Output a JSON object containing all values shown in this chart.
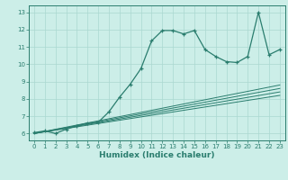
{
  "main_curve_x": [
    0,
    1,
    2,
    3,
    4,
    5,
    6,
    7,
    8,
    9,
    10,
    11,
    12,
    13,
    14,
    15,
    16,
    17,
    18,
    19,
    20,
    21,
    22,
    23
  ],
  "main_curve_y": [
    6.05,
    6.15,
    6.0,
    6.25,
    6.45,
    6.6,
    6.65,
    7.25,
    8.1,
    8.85,
    9.75,
    11.35,
    11.95,
    11.95,
    11.75,
    11.95,
    10.85,
    10.45,
    10.15,
    10.1,
    10.45,
    13.0,
    10.55,
    10.85
  ],
  "ref_lines": [
    {
      "x": [
        0,
        23
      ],
      "y": [
        6.0,
        8.2
      ]
    },
    {
      "x": [
        0,
        23
      ],
      "y": [
        6.0,
        8.4
      ]
    },
    {
      "x": [
        0,
        23
      ],
      "y": [
        6.0,
        8.6
      ]
    },
    {
      "x": [
        0,
        23
      ],
      "y": [
        6.0,
        8.8
      ]
    }
  ],
  "color": "#2a7d6e",
  "bg_color": "#cceee8",
  "grid_color": "#aad8d0",
  "xlim": [
    -0.5,
    23.5
  ],
  "ylim": [
    5.6,
    13.4
  ],
  "yticks": [
    6,
    7,
    8,
    9,
    10,
    11,
    12,
    13
  ],
  "xticks": [
    0,
    1,
    2,
    3,
    4,
    5,
    6,
    7,
    8,
    9,
    10,
    11,
    12,
    13,
    14,
    15,
    16,
    17,
    18,
    19,
    20,
    21,
    22,
    23
  ],
  "xlabel": "Humidex (Indice chaleur)"
}
